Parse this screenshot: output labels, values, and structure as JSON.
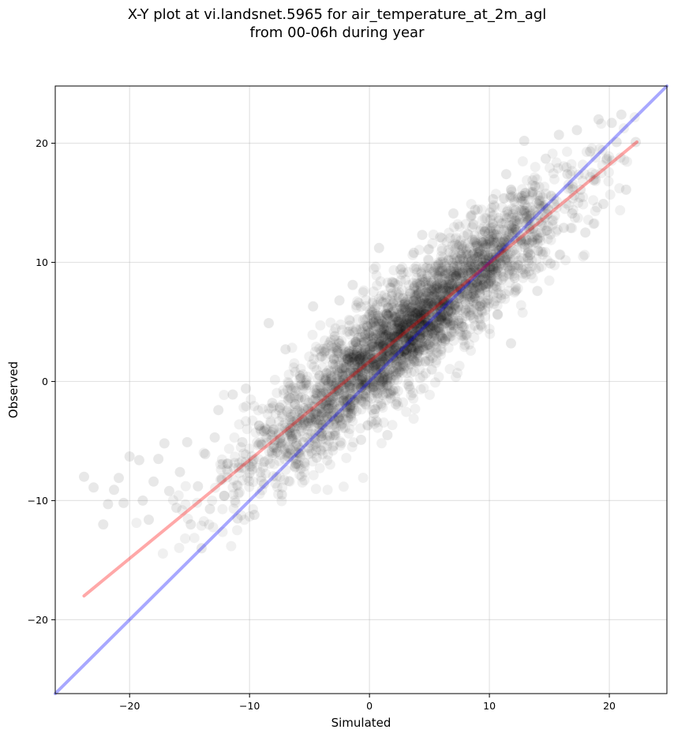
{
  "chart_data": {
    "type": "scatter",
    "title": [
      "X-Y plot at vi.landsnet.5965 for air_temperature_at_2m_agl",
      "from 00-06h during year"
    ],
    "xlabel": "Simulated",
    "ylabel": "Observed",
    "xlim": [
      -26.2,
      24.8
    ],
    "ylim": [
      -26.2,
      24.8
    ],
    "xticks": [
      -20,
      -10,
      0,
      10,
      20
    ],
    "yticks": [
      -20,
      -10,
      0,
      10,
      20
    ],
    "xtick_labels": [
      "−20",
      "−10",
      "0",
      "10",
      "20"
    ],
    "ytick_labels": [
      "−20",
      "−10",
      "0",
      "10",
      "20"
    ],
    "grid": true,
    "point_color": "#000000",
    "point_alpha": 0.06,
    "points_core": [
      [
        -23.8,
        -8.0
      ],
      [
        -23.0,
        -8.9
      ],
      [
        -22.2,
        -12.0
      ],
      [
        -21.8,
        -10.3
      ],
      [
        -21.3,
        -9.1
      ],
      [
        -20.9,
        -8.1
      ],
      [
        -20.5,
        -10.2
      ],
      [
        -20.0,
        -6.3
      ],
      [
        -19.2,
        -6.6
      ],
      [
        -18.9,
        -10.0
      ],
      [
        -18.4,
        -11.6
      ],
      [
        -18.0,
        -8.4
      ],
      [
        -17.6,
        -6.5
      ],
      [
        -17.1,
        -5.2
      ],
      [
        -16.7,
        -9.2
      ],
      [
        -16.1,
        -10.6
      ],
      [
        -15.8,
        -7.6
      ],
      [
        -15.2,
        -5.1
      ],
      [
        -14.9,
        -12.0
      ],
      [
        -14.3,
        -8.8
      ],
      [
        -14.0,
        -14.0
      ],
      [
        -13.7,
        -6.1
      ],
      [
        -13.3,
        -10.7
      ],
      [
        -12.9,
        -4.7
      ],
      [
        -12.6,
        -2.4
      ],
      [
        -12.1,
        -9.6
      ],
      [
        -11.8,
        -6.9
      ],
      [
        -11.4,
        -1.1
      ],
      [
        -11.0,
        -11.5
      ],
      [
        -10.6,
        -5.1
      ],
      [
        -10.3,
        -0.6
      ],
      [
        -10.0,
        -7.7
      ],
      [
        -9.6,
        -11.2
      ],
      [
        -9.2,
        -3.7
      ],
      [
        -8.8,
        -8.6
      ],
      [
        -8.4,
        4.9
      ],
      [
        -8.1,
        -1.8
      ],
      [
        -7.7,
        -5.9
      ],
      [
        -7.3,
        -9.5
      ],
      [
        -7.0,
        2.7
      ],
      [
        -6.6,
        -3.9
      ],
      [
        -6.2,
        -7.2
      ],
      [
        -5.8,
        0.5
      ],
      [
        -5.5,
        -5.1
      ],
      [
        -5.1,
        -2.3
      ],
      [
        -4.7,
        6.3
      ],
      [
        -4.4,
        -6.4
      ],
      [
        -4.0,
        2.1
      ],
      [
        -3.6,
        -0.9
      ],
      [
        -3.3,
        -4.6
      ],
      [
        -2.9,
        3.8
      ],
      [
        -2.5,
        6.8
      ],
      [
        -2.2,
        0.1
      ],
      [
        -1.8,
        -2.6
      ],
      [
        -1.4,
        8.1
      ],
      [
        -1.1,
        4.4
      ],
      [
        -0.7,
        -4.9
      ],
      [
        -0.3,
        1.6
      ],
      [
        0.0,
        5.6
      ],
      [
        0.4,
        -2.7
      ],
      [
        0.8,
        11.2
      ],
      [
        1.1,
        3.2
      ],
      [
        1.5,
        -4.5
      ],
      [
        1.9,
        7.4
      ],
      [
        2.2,
        -1.9
      ],
      [
        2.6,
        9.4
      ],
      [
        3.0,
        4.9
      ],
      [
        3.3,
        -0.4
      ],
      [
        3.7,
        10.8
      ],
      [
        4.1,
        2.6
      ],
      [
        4.4,
        12.3
      ],
      [
        4.8,
        6.9
      ],
      [
        5.2,
        1.0
      ],
      [
        5.5,
        9.6
      ],
      [
        5.9,
        12.1
      ],
      [
        6.3,
        3.4
      ],
      [
        6.6,
        7.9
      ],
      [
        7.0,
        14.1
      ],
      [
        7.4,
        5.1
      ],
      [
        7.7,
        11.4
      ],
      [
        8.1,
        3.9
      ],
      [
        8.5,
        9.1
      ],
      [
        8.8,
        14.4
      ],
      [
        9.2,
        6.3
      ],
      [
        9.6,
        12.6
      ],
      [
        9.9,
        8.2
      ],
      [
        10.3,
        15.3
      ],
      [
        10.7,
        5.6
      ],
      [
        11.0,
        11.3
      ],
      [
        11.4,
        17.4
      ],
      [
        11.8,
        3.2
      ],
      [
        12.1,
        8.7
      ],
      [
        12.5,
        13.6
      ],
      [
        12.9,
        20.2
      ],
      [
        13.2,
        10.4
      ],
      [
        13.6,
        15.9
      ],
      [
        14.0,
        7.6
      ],
      [
        14.3,
        12.5
      ],
      [
        14.7,
        18.7
      ],
      [
        15.1,
        9.9
      ],
      [
        15.4,
        14.9
      ],
      [
        15.8,
        20.7
      ],
      [
        16.2,
        12.9
      ],
      [
        16.5,
        17.4
      ],
      [
        16.9,
        14.1
      ],
      [
        17.3,
        21.1
      ],
      [
        17.6,
        16.1
      ],
      [
        18.0,
        12.5
      ],
      [
        18.4,
        19.3
      ],
      [
        18.7,
        16.9
      ],
      [
        19.1,
        22.0
      ],
      [
        19.5,
        14.9
      ],
      [
        19.8,
        18.7
      ],
      [
        20.2,
        21.7
      ],
      [
        20.6,
        20.1
      ],
      [
        21.0,
        22.4
      ],
      [
        21.4,
        16.1
      ],
      [
        22.2,
        20.1
      ]
    ],
    "lines": [
      {
        "color": "#0000ff",
        "alpha": 0.34,
        "points": [
          [
            -26.2,
            -26.2
          ],
          [
            24.8,
            24.8
          ]
        ]
      },
      {
        "color": "#ff0000",
        "alpha": 0.34,
        "points": [
          [
            -23.8,
            -18.0
          ],
          [
            22.3,
            20.1
          ]
        ]
      }
    ]
  }
}
